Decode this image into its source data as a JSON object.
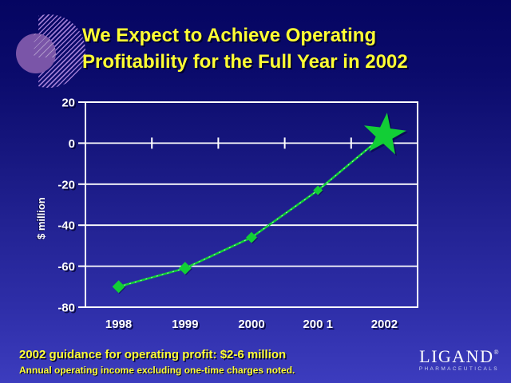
{
  "slide": {
    "title": {
      "line1": "We Expect to Achieve Operating",
      "line2": "Profitability for the Full Year in 2002"
    },
    "footer": {
      "guidance": "2002 guidance for operating profit: $2-6 million",
      "note": "Annual operating income excluding one-time charges noted."
    },
    "logo": {
      "name": "LIGAND",
      "registered": "®",
      "subtitle": "PHARMACEUTICALS"
    }
  },
  "colors": {
    "background_top": "#050561",
    "background_bottom": "#3c3cbe",
    "title_yellow": "#ffff33",
    "axis_white": "#ffffff",
    "series_green": "#12ce36",
    "series_green_light": "#a8ffc0",
    "ornament_purple": "#7a55a8",
    "ornament_hatch": "#9d7bd2"
  },
  "chart_data": {
    "type": "line",
    "title": "",
    "xlabel": "",
    "ylabel": "$ million",
    "categories": [
      "1998",
      "1999",
      "2000",
      "200 1",
      "2002"
    ],
    "values": [
      -70,
      -61,
      -46,
      -23,
      4
    ],
    "ylim": [
      -80,
      20
    ],
    "yticks": [
      20,
      0,
      -20,
      -40,
      -60,
      -80
    ],
    "grid": true,
    "legend": false,
    "marker": "diamond",
    "star_on_last_point": true
  }
}
